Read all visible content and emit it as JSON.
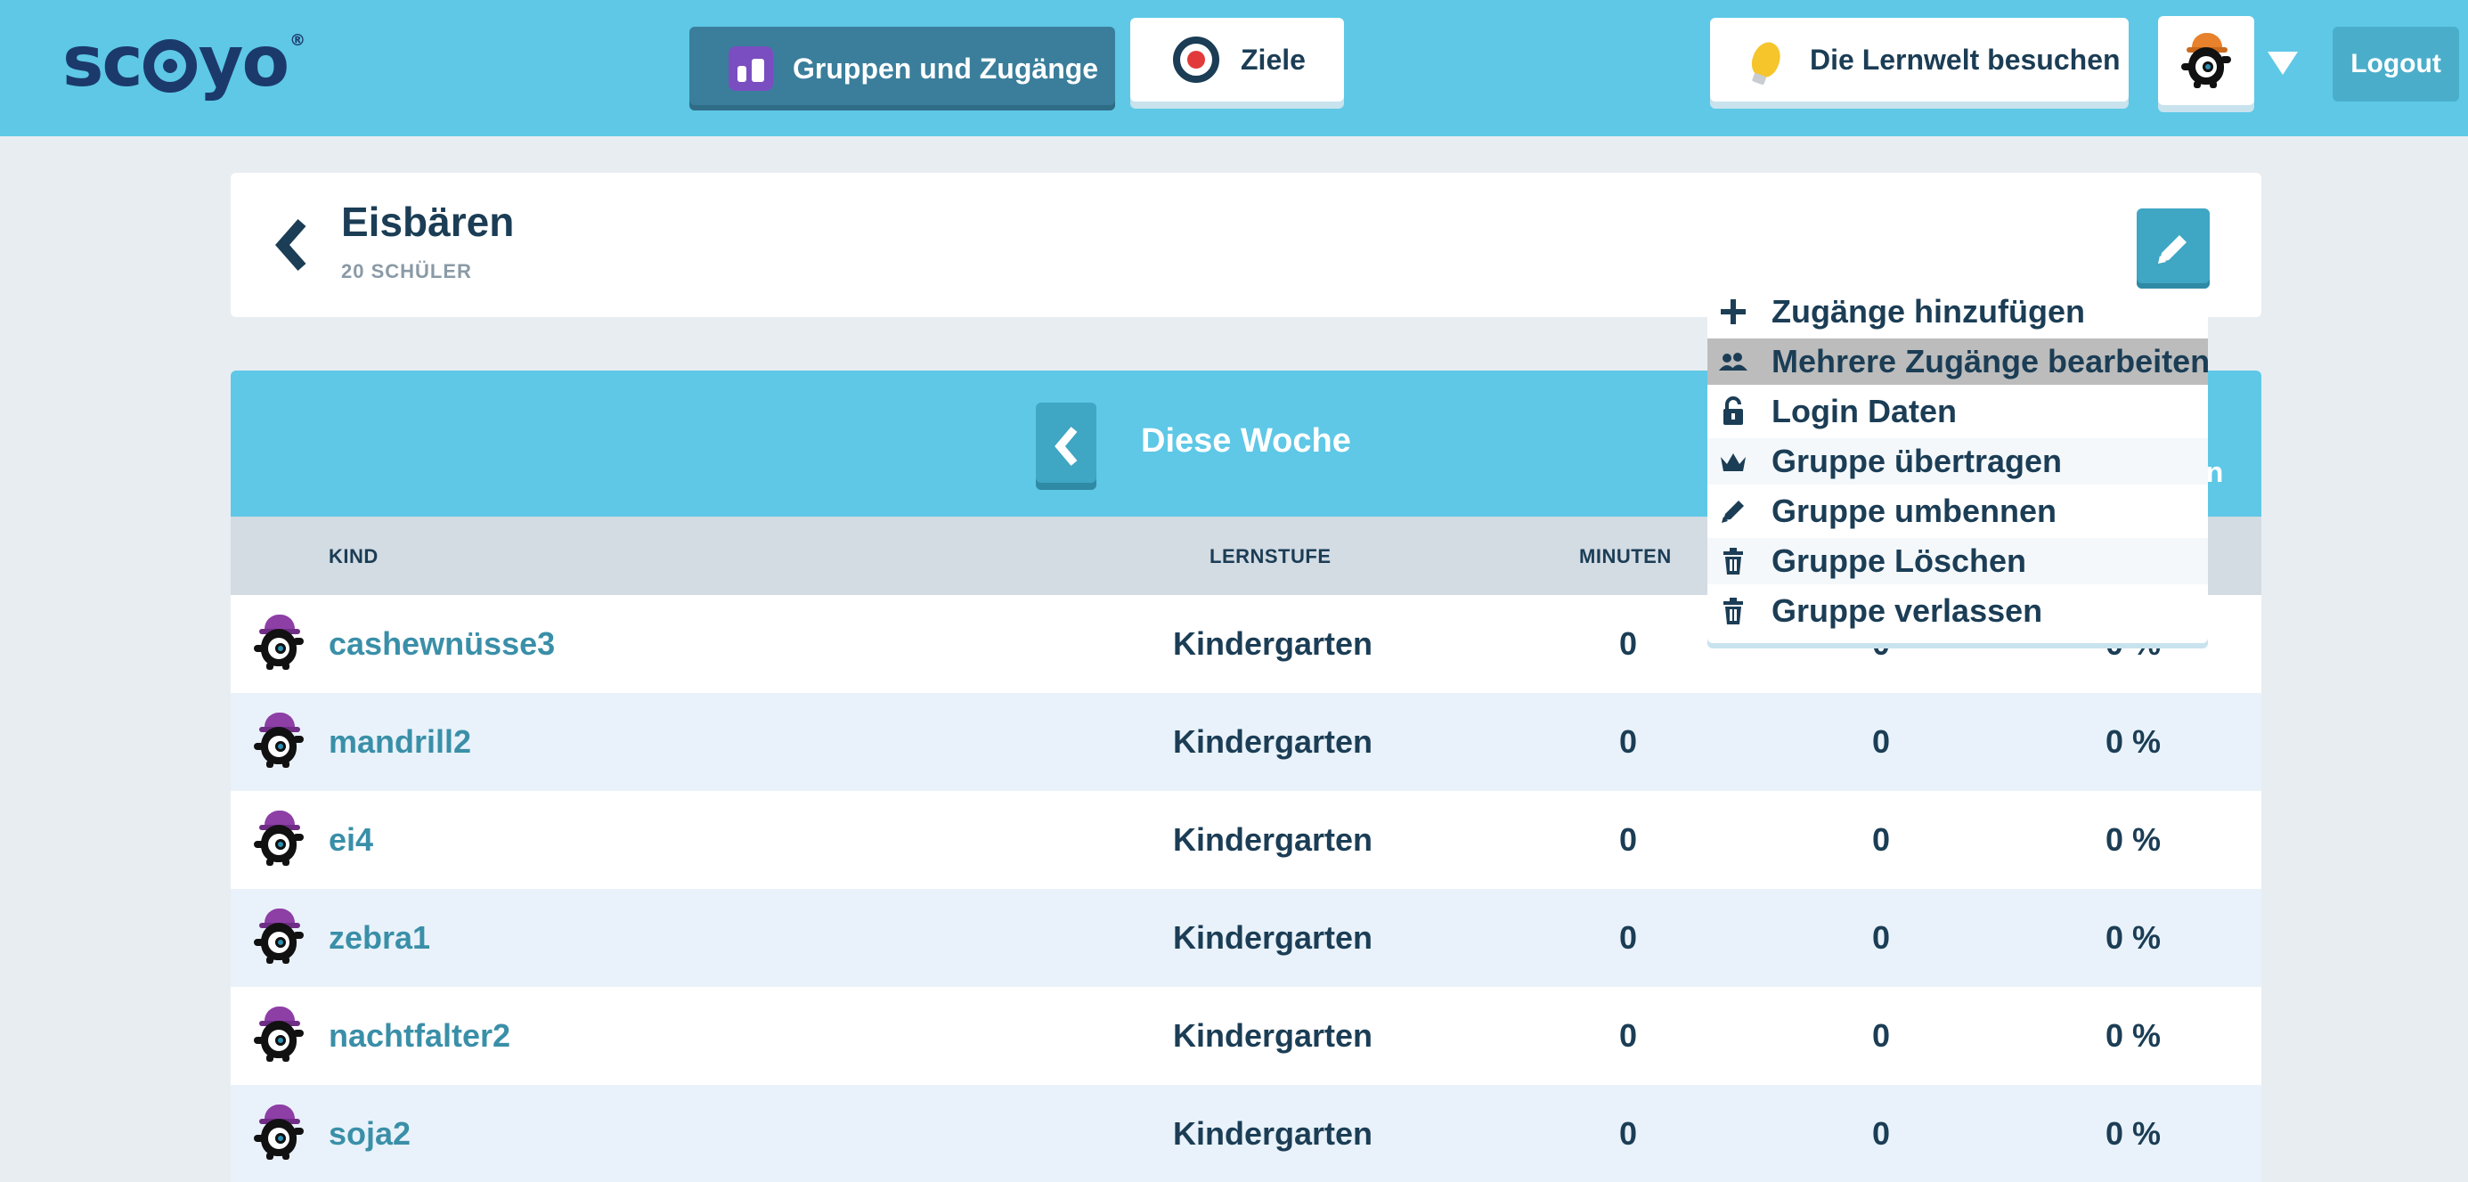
{
  "header": {
    "logo_text": "sc",
    "logo_text_end": "yo",
    "logo_reg": "®",
    "nav_groups_label": "Gruppen und Zugänge",
    "nav_goals_label": "Ziele",
    "nav_world_label": "Die Lernwelt besuchen",
    "logout_label": "Logout"
  },
  "group": {
    "title": "Eisbären",
    "subtitle": "20 SCHÜLER"
  },
  "week": {
    "label": "Diese Woche",
    "right_fragment": "en"
  },
  "table": {
    "columns": [
      "KIND",
      "LERNSTUFE",
      "MINUTEN"
    ],
    "rows": [
      {
        "name": "cashewnüsse3",
        "level": "Kindergarten",
        "minutes": "0",
        "col4": "0",
        "col5": "0 %"
      },
      {
        "name": "mandrill2",
        "level": "Kindergarten",
        "minutes": "0",
        "col4": "0",
        "col5": "0 %"
      },
      {
        "name": "ei4",
        "level": "Kindergarten",
        "minutes": "0",
        "col4": "0",
        "col5": "0 %"
      },
      {
        "name": "zebra1",
        "level": "Kindergarten",
        "minutes": "0",
        "col4": "0",
        "col5": "0 %"
      },
      {
        "name": "nachtfalter2",
        "level": "Kindergarten",
        "minutes": "0",
        "col4": "0",
        "col5": "0 %"
      },
      {
        "name": "soja2",
        "level": "Kindergarten",
        "minutes": "0",
        "col4": "0",
        "col5": "0 %"
      }
    ]
  },
  "menu": {
    "items": [
      {
        "label": "Zugänge hinzufügen",
        "icon": "plus-icon"
      },
      {
        "label": "Mehrere Zugänge bearbeiten",
        "icon": "users-icon"
      },
      {
        "label": "Login Daten",
        "icon": "unlock-icon"
      },
      {
        "label": "Gruppe übertragen",
        "icon": "crown-icon"
      },
      {
        "label": "Gruppe umbennen",
        "icon": "pencil-icon"
      },
      {
        "label": "Gruppe Löschen",
        "icon": "trash-icon"
      },
      {
        "label": "Gruppe verlassen",
        "icon": "trash-icon"
      }
    ]
  },
  "colors": {
    "topbar": "#5ec8e6",
    "accent_dark": "#1b3d55",
    "link": "#3a8fa8",
    "button": "#3fa6c3"
  }
}
